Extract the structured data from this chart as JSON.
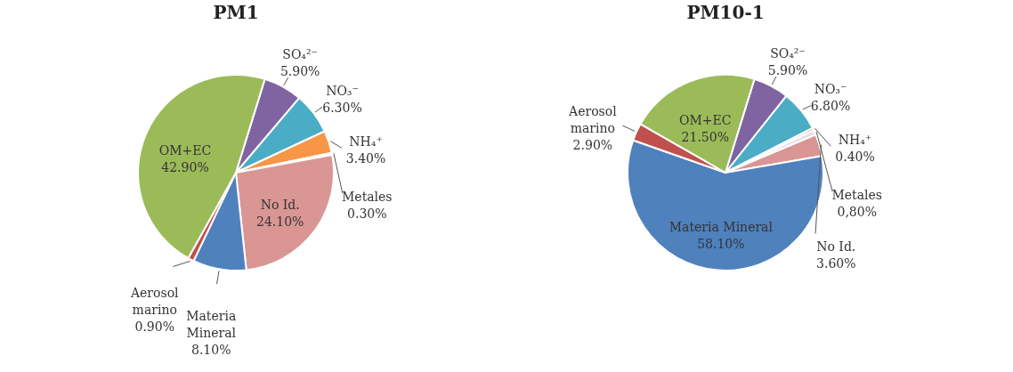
{
  "chart_data": [
    {
      "type": "pie",
      "title": "PM1",
      "categories": [
        "SO₄²⁻",
        "NO₃⁻",
        "NH₄⁺",
        "Metales",
        "No Id.",
        "Materia Mineral",
        "Aerosol marino",
        "OM+EC"
      ],
      "values": [
        5.9,
        6.3,
        3.4,
        0.3,
        24.1,
        8.1,
        0.9,
        42.9
      ],
      "value_labels": [
        "5.90%",
        "6.30%",
        "3.40%",
        "0.30%",
        "24.10%",
        "8.10%",
        "0.90%",
        "42.90%"
      ],
      "colors": [
        "#8064a2",
        "#4bacc6",
        "#f79646",
        "#f79646",
        "#d99694",
        "#4f81bd",
        "#c0504d",
        "#9bbb59"
      ]
    },
    {
      "type": "pie",
      "title": "PM10-1",
      "categories": [
        "SO₄²⁻",
        "NO₃⁻",
        "NH₄⁺",
        "Metales",
        "No Id.",
        "Materia Mineral",
        "Aerosol marino",
        "OM+EC"
      ],
      "values": [
        5.9,
        6.8,
        0.4,
        0.8,
        3.6,
        58.1,
        2.9,
        21.5
      ],
      "value_labels": [
        "5.90%",
        "6.80%",
        "0.40%",
        "0,80%",
        "3.60%",
        "58.10%",
        "2.90%",
        "21.50%"
      ],
      "colors": [
        "#8064a2",
        "#4bacc6",
        "#f79646",
        "#e6e0ec",
        "#d99694",
        "#4f81bd",
        "#c0504d",
        "#9bbb59"
      ]
    }
  ]
}
